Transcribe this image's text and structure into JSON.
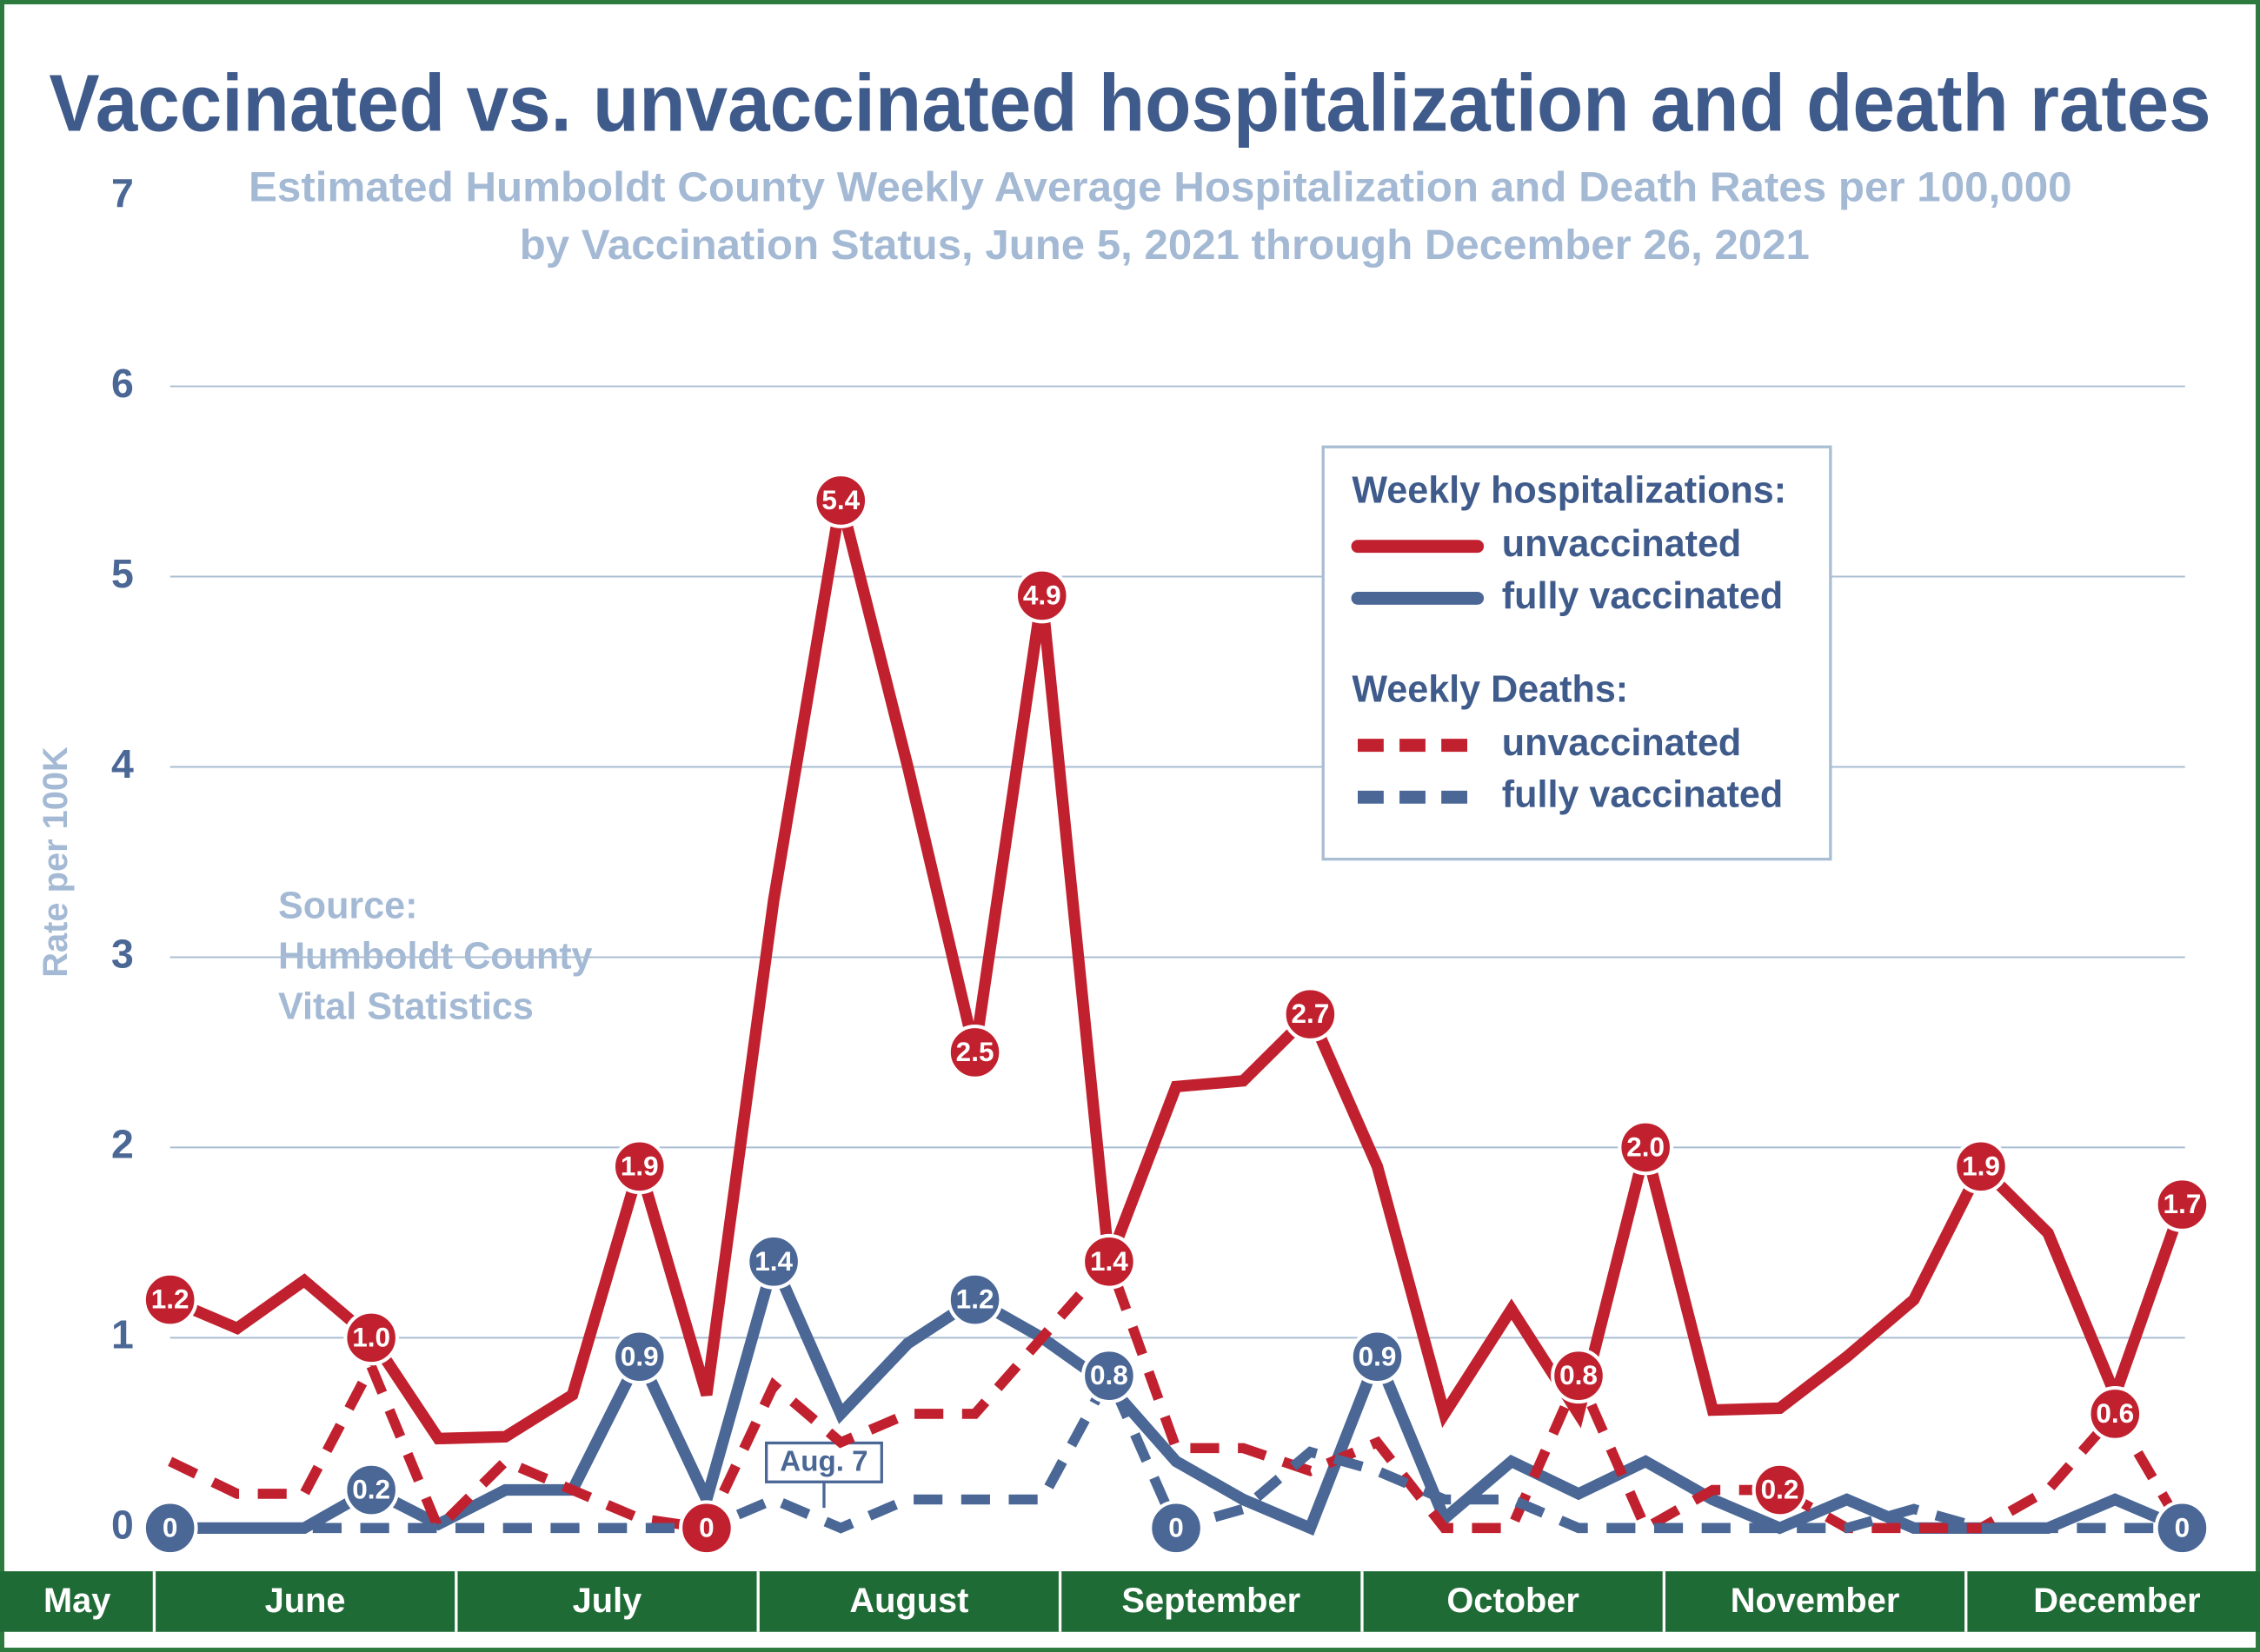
{
  "chart_data": {
    "type": "line",
    "title": "Vaccinated vs. unvaccinated hospitalization and death rates",
    "subtitle": [
      "Estimated Humboldt County Weekly Average Hospitalization and Death Rates per 100,000",
      "by Vaccination Status,  June 5, 2021 through December 26, 2021"
    ],
    "ylabel": "Rate per 100K",
    "ylim": [
      0,
      7
    ],
    "yticks": [
      0,
      1,
      2,
      3,
      4,
      5,
      6,
      7
    ],
    "grid": true,
    "months": [
      "May",
      "June",
      "July",
      "August",
      "September",
      "October",
      "November",
      "December"
    ],
    "annotation": "Aug. 7",
    "source": [
      "Source:",
      "Humboldt County",
      "Vital Statistics"
    ],
    "legend_groups": [
      "Weekly hospitalizations:",
      "Weekly Deaths:"
    ],
    "series": [
      {
        "name": "unvaccinated",
        "color": "#c1212f",
        "dashed": false,
        "values": [
          1.2,
          1.05,
          1.3,
          1.0,
          0.47,
          0.48,
          0.7,
          1.9,
          0.7,
          3.3,
          5.4,
          4.0,
          2.5,
          4.9,
          1.4,
          2.32,
          2.35,
          2.7,
          1.9,
          0.6,
          1.15,
          0.6,
          2.0,
          0.62,
          0.63,
          0.9,
          1.2,
          1.9,
          1.55,
          0.7,
          1.7
        ],
        "value_labels": [
          "1.2",
          null,
          null,
          "1.0",
          null,
          null,
          null,
          "1.9",
          null,
          null,
          "5.4",
          null,
          "2.5",
          "4.9",
          null,
          null,
          null,
          "2.7",
          null,
          null,
          null,
          null,
          "2.0",
          null,
          null,
          null,
          null,
          "1.9",
          null,
          null,
          "1.7"
        ]
      },
      {
        "name": "fully vaccinated",
        "color": "#4a6796",
        "dashed": false,
        "values": [
          0,
          0,
          0,
          0.2,
          0.02,
          0.2,
          0.2,
          0.9,
          0.15,
          1.4,
          0.6,
          0.97,
          1.2,
          1.0,
          0.75,
          0.35,
          0.15,
          0,
          0.9,
          0.05,
          0.35,
          0.18,
          0.35,
          0.15,
          0,
          0.15,
          0,
          0,
          0,
          0.15,
          0
        ],
        "value_labels": [
          null,
          null,
          null,
          "0.2",
          null,
          null,
          null,
          "0.9",
          null,
          "1.4",
          null,
          null,
          "1.2",
          null,
          null,
          null,
          null,
          null,
          "0.9",
          null,
          null,
          null,
          null,
          null,
          null,
          null,
          null,
          null,
          null,
          null,
          null
        ]
      },
      {
        "name": "unvaccinated",
        "color": "#c1212f",
        "dashed": true,
        "values": [
          0.35,
          0.18,
          0.18,
          0.85,
          0,
          0.35,
          0.2,
          0.05,
          0,
          0.75,
          0.45,
          0.6,
          0.6,
          1.0,
          1.4,
          0.42,
          0.42,
          0.3,
          0.45,
          0,
          0,
          0.8,
          0,
          0.2,
          0.2,
          0,
          0,
          0,
          0.2,
          0.6,
          0
        ],
        "value_labels": [
          null,
          null,
          null,
          null,
          null,
          null,
          null,
          null,
          "0",
          null,
          null,
          null,
          null,
          null,
          "1.4",
          null,
          null,
          null,
          null,
          null,
          null,
          "0.8",
          null,
          null,
          "0.2",
          null,
          null,
          null,
          null,
          "0.6",
          null
        ]
      },
      {
        "name": "fully vaccinated",
        "color": "#4a6796",
        "dashed": true,
        "values": [
          0,
          0,
          0,
          0,
          0,
          0,
          0,
          0,
          0,
          0.15,
          0,
          0.15,
          0.15,
          0.15,
          0.8,
          0,
          0.1,
          0.4,
          0.3,
          0.15,
          0.15,
          0,
          0,
          0,
          0,
          0,
          0.1,
          0,
          0,
          0,
          0
        ],
        "value_labels": [
          "0",
          null,
          null,
          null,
          null,
          null,
          null,
          null,
          null,
          null,
          null,
          null,
          null,
          null,
          "0.8",
          "0",
          null,
          null,
          null,
          null,
          null,
          null,
          null,
          null,
          null,
          null,
          null,
          null,
          null,
          null,
          "0"
        ]
      }
    ]
  }
}
